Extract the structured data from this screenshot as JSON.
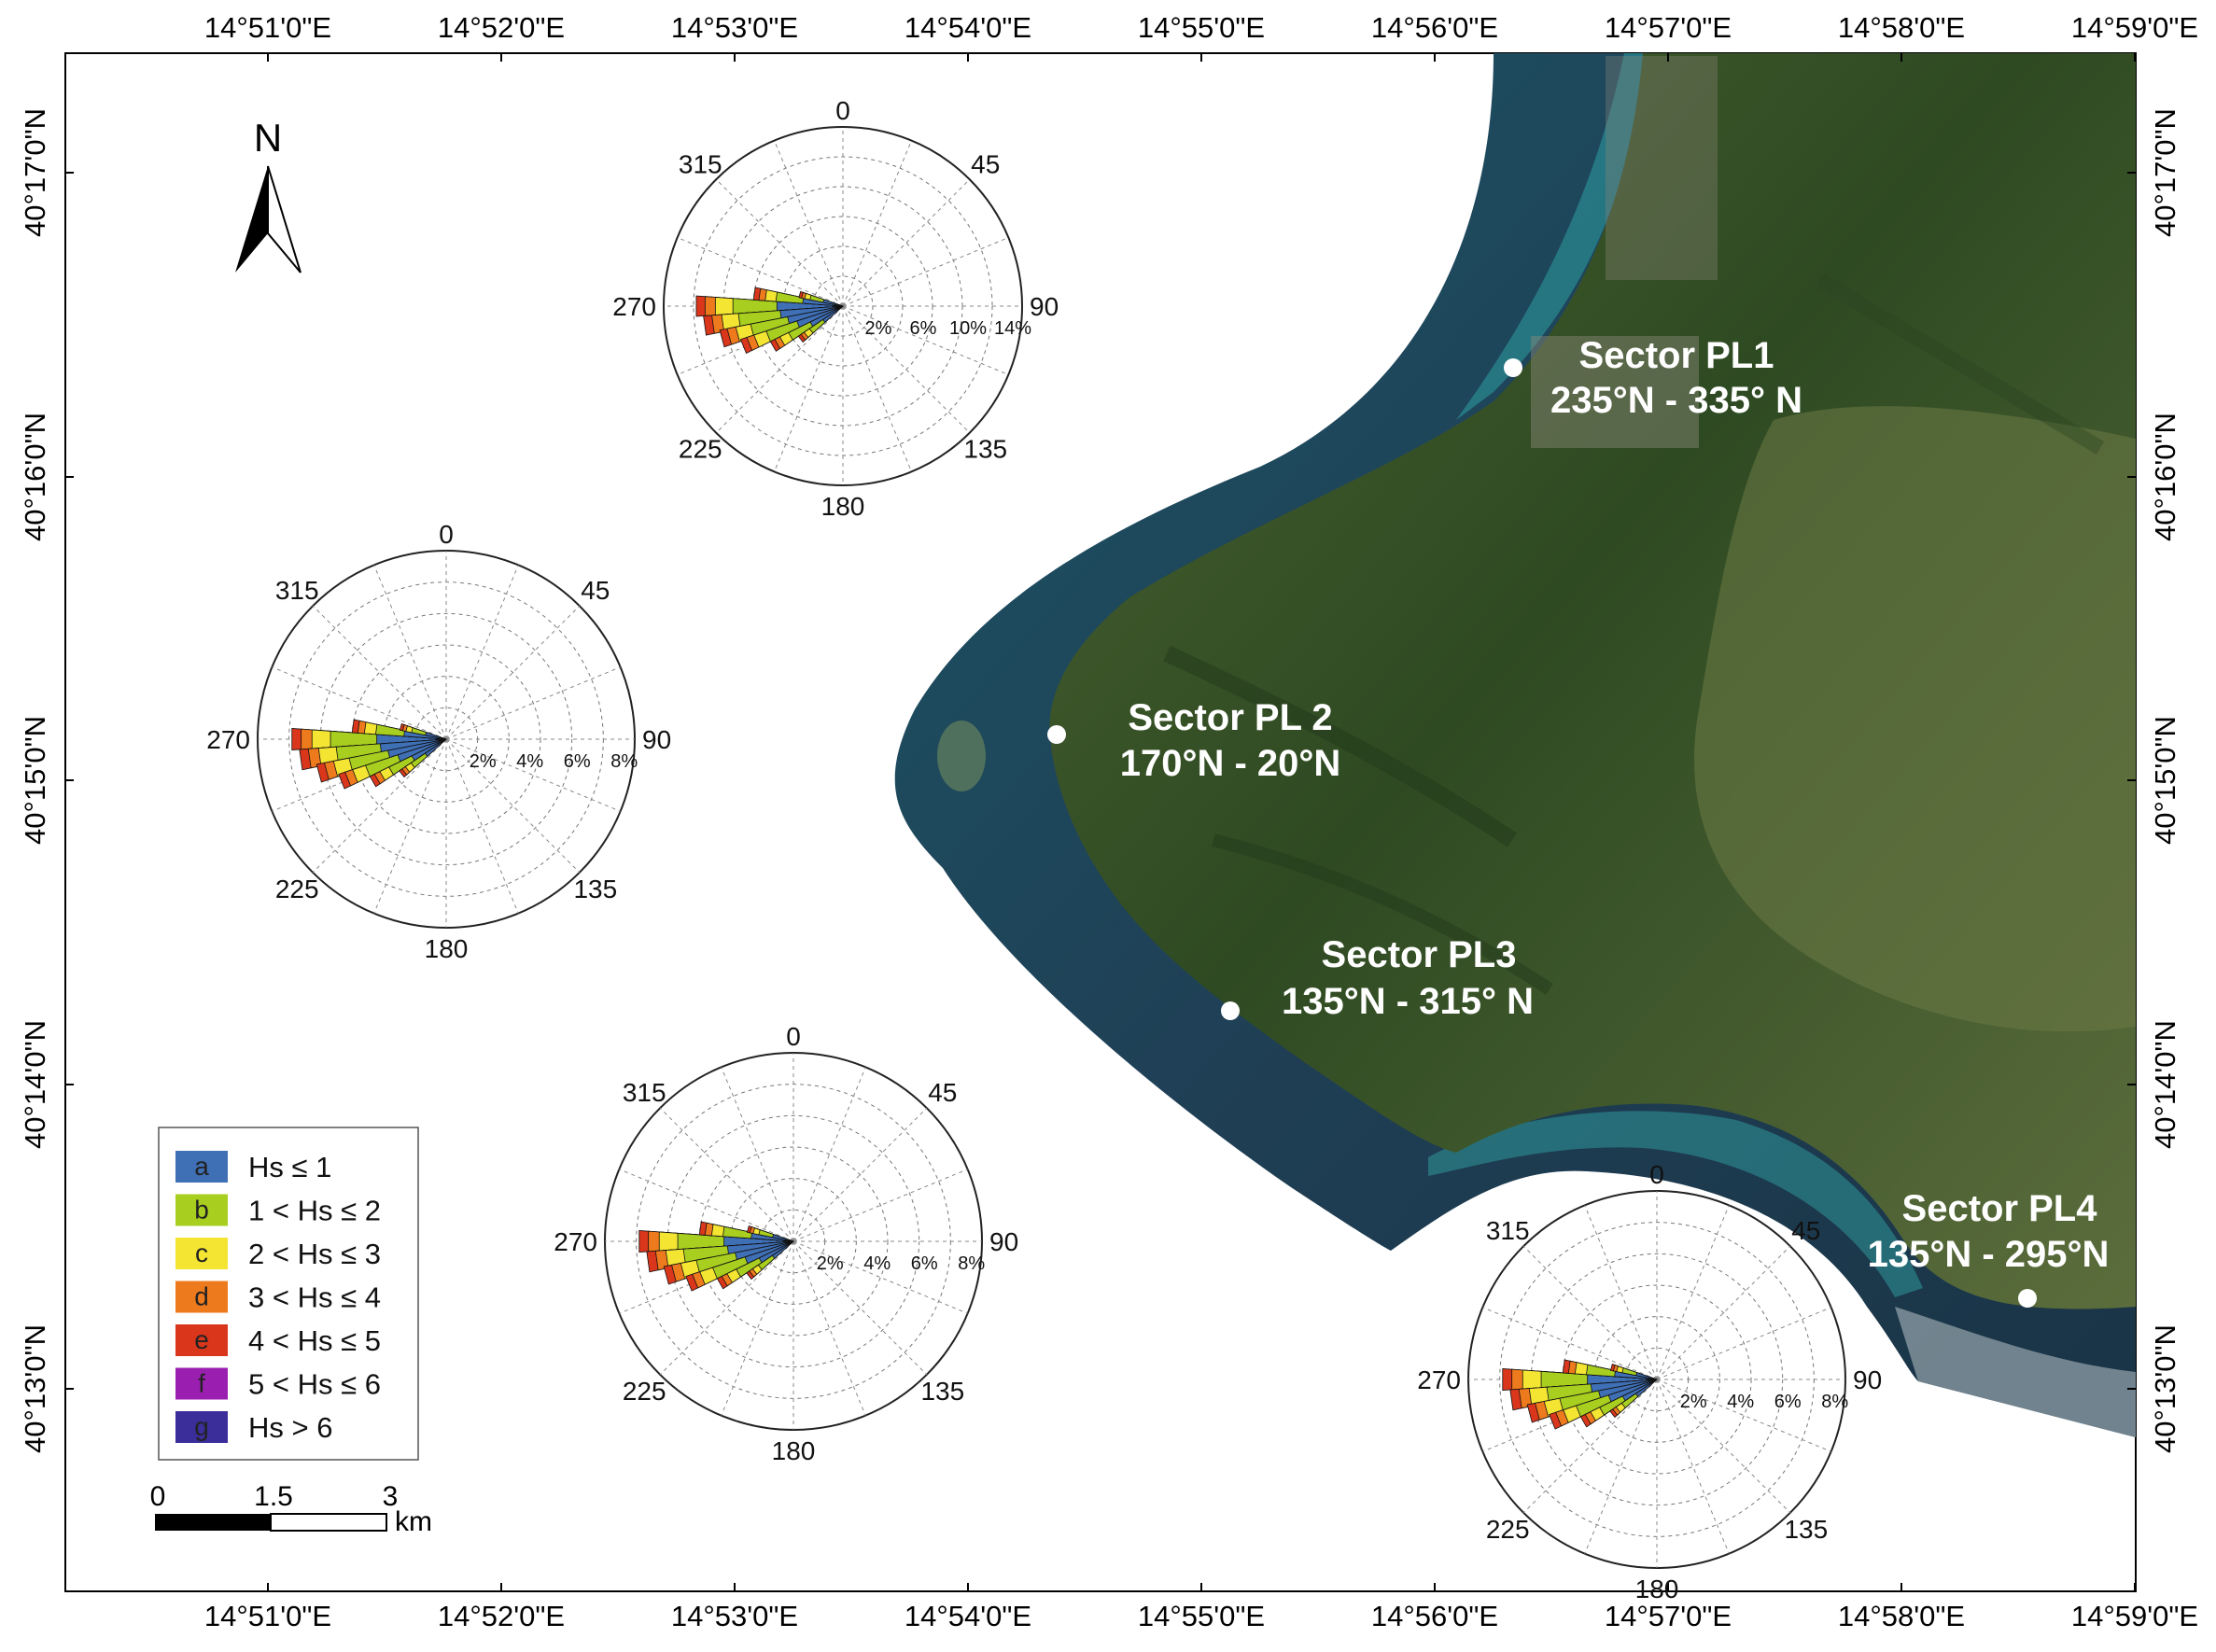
{
  "axes": {
    "top": [
      "14°51'0\"E",
      "14°52'0\"E",
      "14°53'0\"E",
      "14°54'0\"E",
      "14°55'0\"E",
      "14°56'0\"E",
      "14°57'0\"E",
      "14°58'0\"E",
      "14°59'0\"E"
    ],
    "bottom": [
      "14°51'0\"E",
      "14°52'0\"E",
      "14°53'0\"E",
      "14°54'0\"E",
      "14°55'0\"E",
      "14°56'0\"E",
      "14°57'0\"E",
      "14°58'0\"E",
      "14°59'0\"E"
    ],
    "left": [
      "40°17'0\"N",
      "40°16'0\"N",
      "40°15'0\"N",
      "40°14'0\"N",
      "40°13'0\"N"
    ],
    "right": [
      "40°17'0\"N",
      "40°16'0\"N",
      "40°15'0\"N",
      "40°14'0\"N",
      "40°13'0\"N"
    ]
  },
  "north_arrow": {
    "label": "N",
    "icon": "north-arrow-icon"
  },
  "sectors": [
    {
      "name": "Sector PL1",
      "range": "235°N - 335° N"
    },
    {
      "name": "Sector PL 2",
      "range": "170°N - 20°N"
    },
    {
      "name": "Sector PL3",
      "range": "135°N - 315° N"
    },
    {
      "name": "Sector PL4",
      "range": "135°N - 295°N"
    }
  ],
  "legend": [
    {
      "key": "a",
      "label": "Hs ≤ 1",
      "color": "#3f6fb5"
    },
    {
      "key": "b",
      "label": "1 < Hs ≤ 2",
      "color": "#a8cf1f"
    },
    {
      "key": "c",
      "label": "2 < Hs ≤ 3",
      "color": "#f4e532"
    },
    {
      "key": "d",
      "label": "3 < Hs ≤ 4",
      "color": "#ee7a1e"
    },
    {
      "key": "e",
      "label": "4 < Hs ≤ 5",
      "color": "#d9361c"
    },
    {
      "key": "f",
      "label": "5 < Hs ≤ 6",
      "color": "#9a1fb0"
    },
    {
      "key": "g",
      "label": "Hs > 6",
      "color": "#3b2d9a"
    }
  ],
  "scale_bar": {
    "ticks": [
      "0",
      "1.5",
      "3"
    ],
    "unit": "km"
  },
  "wave_roses": [
    {
      "directions": [
        "0",
        "45",
        "90",
        "135",
        "180",
        "225",
        "270",
        "315"
      ],
      "rings": [
        "2%",
        "6%",
        "10%",
        "14%"
      ]
    },
    {
      "directions": [
        "0",
        "45",
        "90",
        "135",
        "180",
        "225",
        "270",
        "315"
      ],
      "rings": [
        "2%",
        "4%",
        "6%",
        "8%"
      ]
    },
    {
      "directions": [
        "0",
        "45",
        "90",
        "135",
        "180",
        "225",
        "270",
        "315"
      ],
      "rings": [
        "2%",
        "4%",
        "6%",
        "8%"
      ]
    },
    {
      "directions": [
        "0",
        "45",
        "90",
        "135",
        "180",
        "225",
        "270",
        "315"
      ],
      "rings": [
        "2%",
        "4%",
        "6%",
        "8%"
      ]
    }
  ],
  "colors": {
    "sea_dark": "#1f3f55",
    "sea_shallow": "#2d8a92",
    "land_dark": "#2e4a22",
    "land_light": "#6c7a45",
    "frame": "#000000"
  }
}
